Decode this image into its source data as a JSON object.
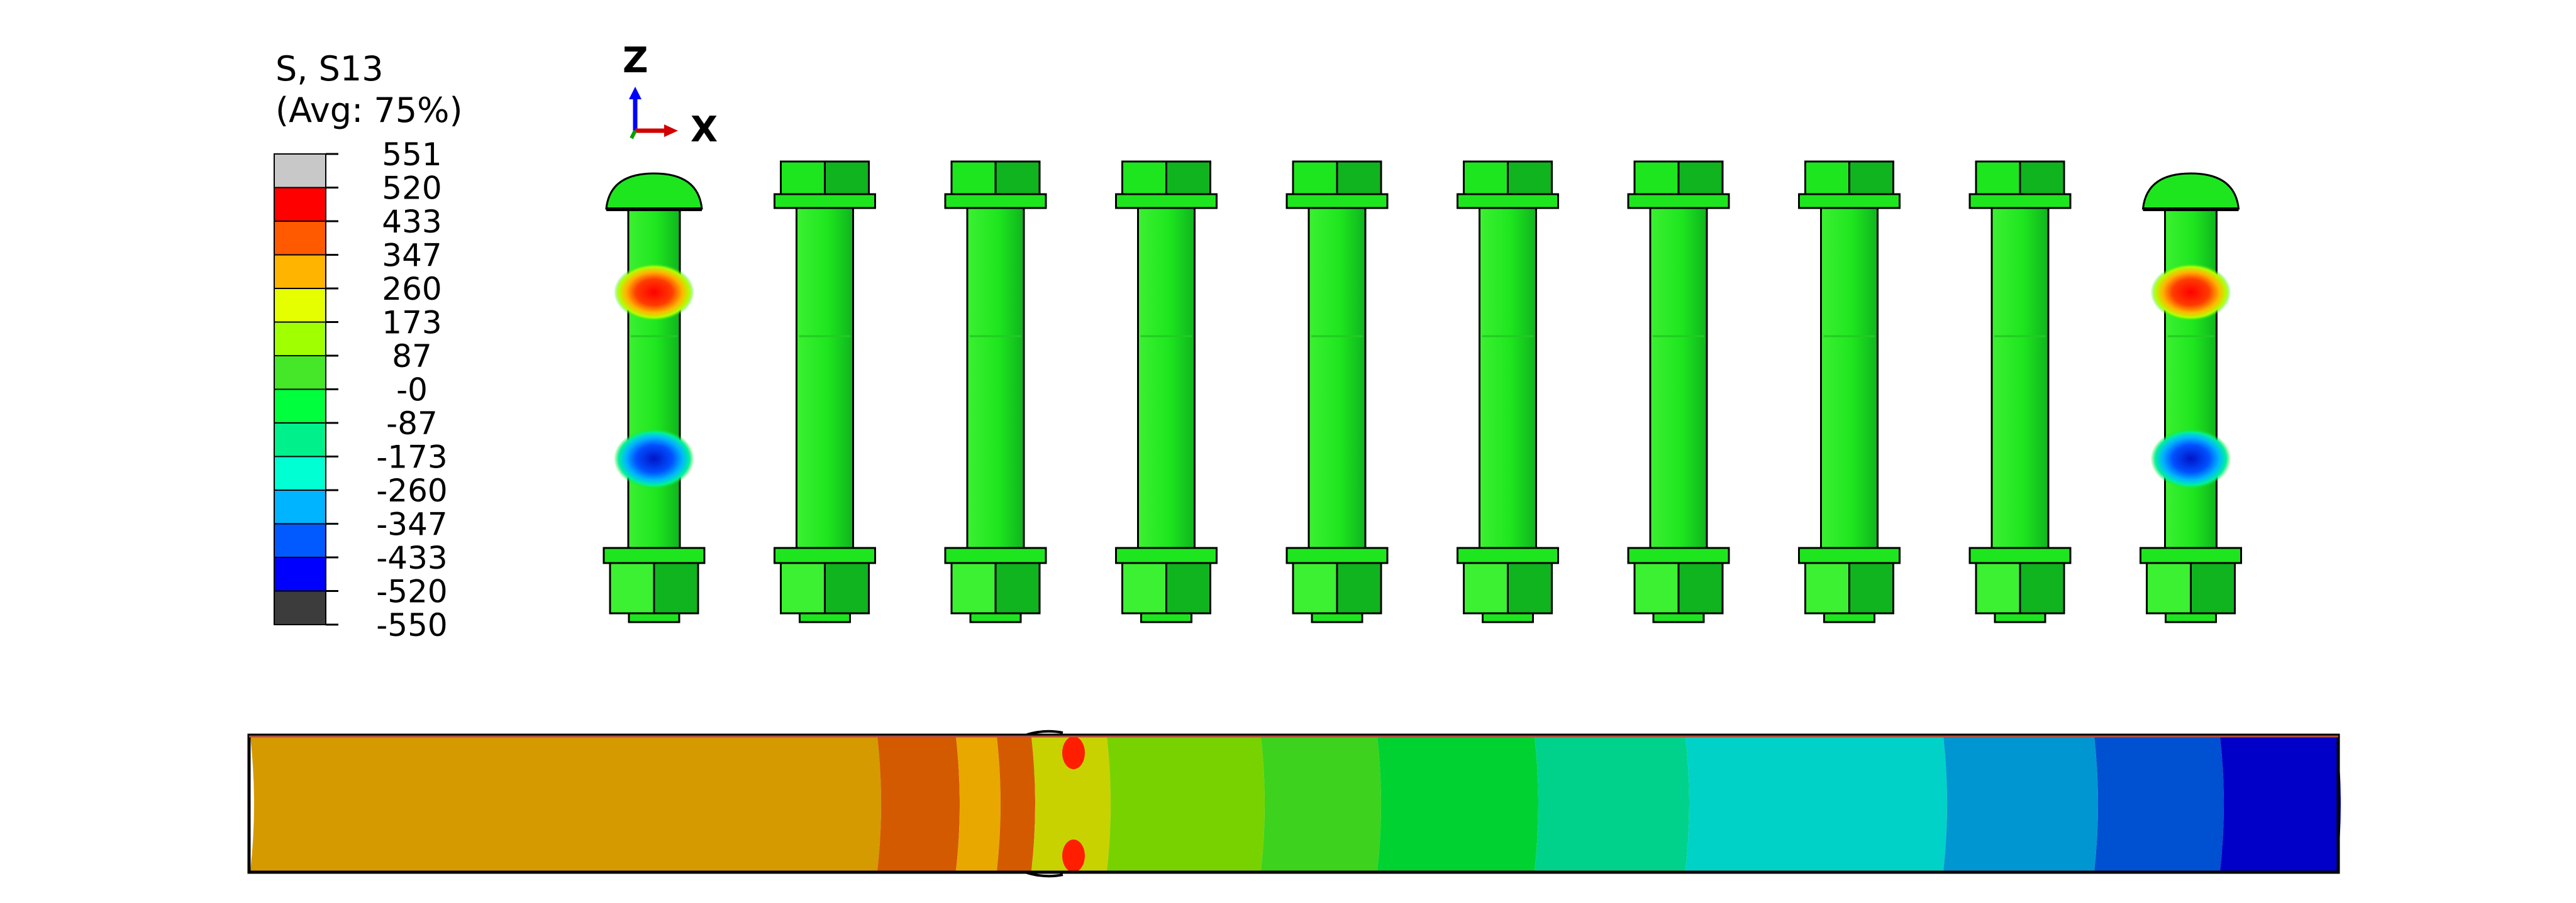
{
  "legend": {
    "title_line1": "S, S13",
    "title_line2": "(Avg: 75%)",
    "values": [
      "551",
      "520",
      "433",
      "347",
      "260",
      "173",
      "87",
      "-0",
      "-87",
      "-173",
      "-260",
      "-347",
      "-433",
      "-520",
      "-550"
    ],
    "colors": [
      "#c8c8c8",
      "#ff0000",
      "#ff5a00",
      "#ffb400",
      "#e6ff00",
      "#a0ff00",
      "#46e628",
      "#00ff3c",
      "#00f08c",
      "#00ffd2",
      "#00b4ff",
      "#005aff",
      "#0000ff",
      "#3c3c3c"
    ]
  },
  "triad": {
    "z_label": "Z",
    "x_label": "X"
  },
  "bolt_count": 10,
  "colors": {
    "bolt_face": "#1ee61e",
    "bolt_shade": "#0fb41e",
    "bolt_light": "#3cf032",
    "hot": "#ff1e00",
    "orange": "#ffa000",
    "cold": "#0028ff",
    "cyan": "#00c8ff"
  },
  "section_colors": [
    "#d59a00",
    "#d45a00",
    "#e8a800",
    "#d45a00",
    "#c8d200",
    "#78d200",
    "#3cd21e",
    "#00d232",
    "#00d28c",
    "#00d2c8",
    "#0096d2",
    "#0050d2",
    "#0000c8"
  ]
}
